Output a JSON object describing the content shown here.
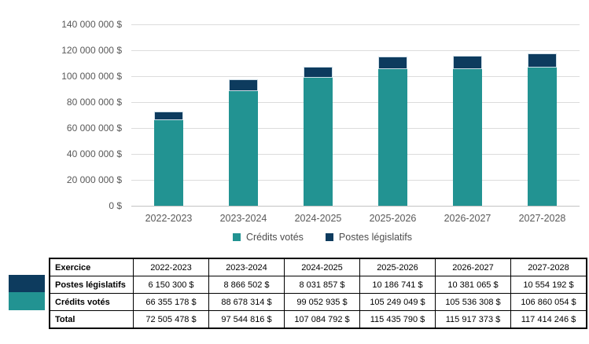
{
  "colors": {
    "teal": "#229392",
    "navy": "#0d3b5e",
    "grid": "#dcdcdc",
    "axis_text": "#595959"
  },
  "chart_data": {
    "type": "bar",
    "stacked": true,
    "grid": true,
    "legend_position": "bottom",
    "categories": [
      "2022-2023",
      "2023-2024",
      "2024-2025",
      "2025-2026",
      "2026-2027",
      "2027-2028"
    ],
    "series": [
      {
        "name": "Crédits votés",
        "color_key": "teal",
        "values": [
          66355178,
          88678314,
          99052935,
          105249049,
          105536308,
          106860054
        ]
      },
      {
        "name": "Postes législatifs",
        "color_key": "navy",
        "values": [
          6150300,
          8866502,
          8031857,
          10186741,
          10381065,
          10554192
        ]
      }
    ],
    "totals": [
      72505478,
      97544816,
      107084792,
      115435790,
      115917373,
      117414246
    ],
    "ylim": [
      0,
      140000000
    ],
    "yticks": [
      {
        "value": 140000000,
        "label": "140 000 000 $"
      },
      {
        "value": 120000000,
        "label": "120 000 000 $"
      },
      {
        "value": 100000000,
        "label": "100 000 000 $"
      },
      {
        "value": 80000000,
        "label": "80 000 000 $"
      },
      {
        "value": 60000000,
        "label": "60 000 000 $"
      },
      {
        "value": 40000000,
        "label": "40 000 000 $"
      },
      {
        "value": 20000000,
        "label": "20 000 000 $"
      },
      {
        "value": 0,
        "label": "0 $"
      }
    ]
  },
  "table": {
    "header_row": [
      "Exercice",
      "2022-2023",
      "2023-2024",
      "2024-2025",
      "2025-2026",
      "2026-2027",
      "2027-2028"
    ],
    "rows": [
      {
        "label": "Postes législatifs",
        "swatch": "navy",
        "values": [
          "6 150 300 $",
          "8 866 502 $",
          "8 031 857 $",
          "10 186 741 $",
          "10 381 065 $",
          "10 554 192 $"
        ]
      },
      {
        "label": "Crédits votés",
        "swatch": "teal",
        "values": [
          "66 355 178 $",
          "88 678 314 $",
          "99 052 935 $",
          "105 249 049 $",
          "105 536 308 $",
          "106 860 054 $"
        ]
      },
      {
        "label": "Total",
        "swatch": null,
        "values": [
          "72 505 478 $",
          "97 544 816 $",
          "107 084 792 $",
          "115 435 790 $",
          "115 917 373 $",
          "117 414 246 $"
        ]
      }
    ]
  }
}
